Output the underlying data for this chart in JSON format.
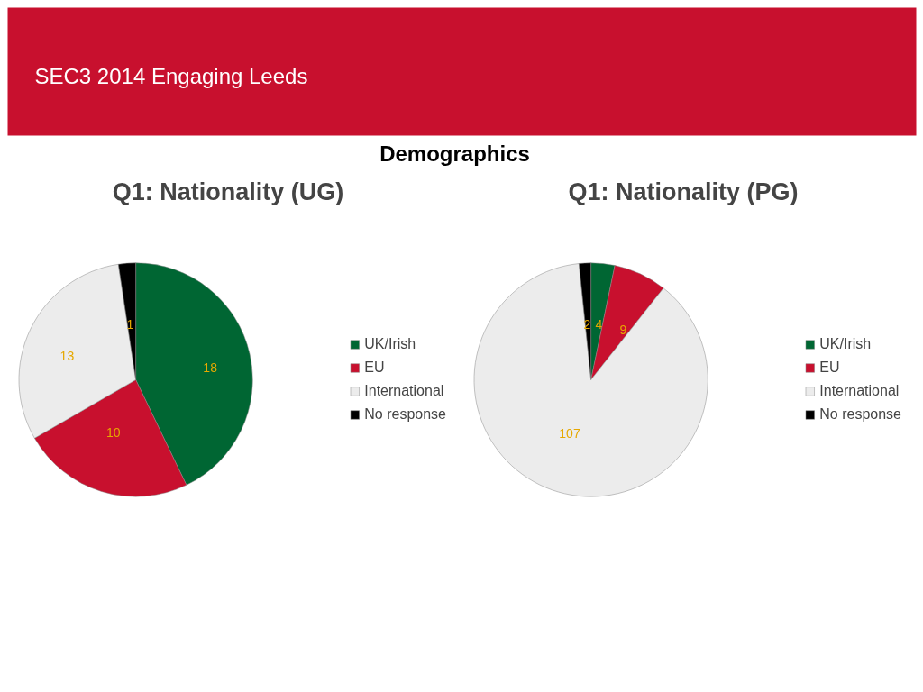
{
  "chart_data": [
    {
      "type": "pie",
      "title": "Q1: Nationality (UG)",
      "annotations": [
        "SEC3  2014 Engaging Leeds",
        "Demographics"
      ],
      "categories": [
        "UK/Irish",
        "EU",
        "International",
        "No response"
      ],
      "values": [
        18,
        10,
        13,
        1
      ],
      "colors": [
        "#006633",
        "#c8102e",
        "#ececec",
        "#000000"
      ],
      "data_labels": true,
      "legend": "right"
    },
    {
      "type": "pie",
      "title": "Q1: Nationality (PG)",
      "categories": [
        "UK/Irish",
        "EU",
        "International",
        "No response"
      ],
      "values": [
        4,
        9,
        107,
        2
      ],
      "colors": [
        "#006633",
        "#c8102e",
        "#ececec",
        "#000000"
      ],
      "data_labels": true,
      "legend": "right"
    }
  ]
}
